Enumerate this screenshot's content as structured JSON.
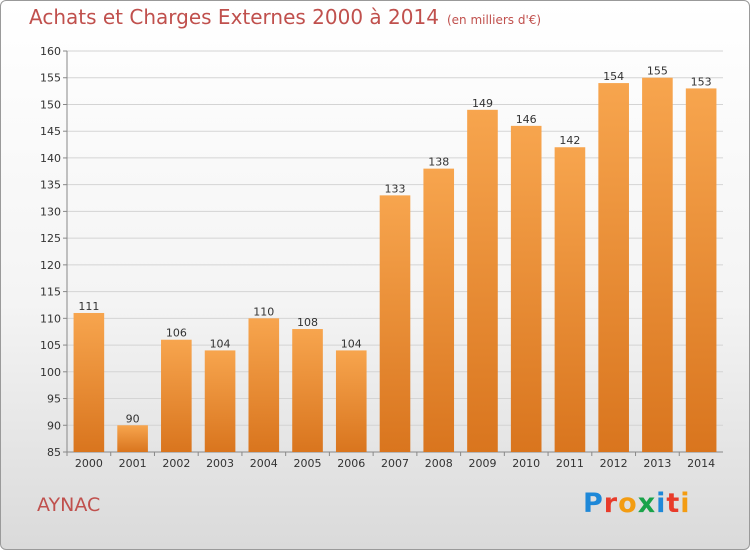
{
  "title": "Achats et Charges Externes 2000 à 2014",
  "unit": "(en milliers d'€)",
  "commune": "AYNAC",
  "logo": {
    "letters": [
      "P",
      "r",
      "o",
      "x",
      "i",
      "t",
      "i"
    ],
    "colors": [
      "#1e88d8",
      "#e83b2a",
      "#f39c12",
      "#1aa34a",
      "#1e88d8",
      "#e83b2a",
      "#f39c12"
    ]
  },
  "colors": {
    "bar_top": "#f7a54e",
    "bar_bottom": "#d9751e",
    "title": "#c0504d"
  },
  "chart_data": {
    "type": "bar",
    "categories": [
      "2000",
      "2001",
      "2002",
      "2003",
      "2004",
      "2005",
      "2006",
      "2007",
      "2008",
      "2009",
      "2010",
      "2011",
      "2012",
      "2013",
      "2014"
    ],
    "values": [
      111,
      90,
      106,
      104,
      110,
      108,
      104,
      133,
      138,
      149,
      146,
      142,
      154,
      155,
      153
    ],
    "ylim": [
      85,
      160
    ],
    "yticks": [
      85,
      90,
      95,
      100,
      105,
      110,
      115,
      120,
      125,
      130,
      135,
      140,
      145,
      150,
      155,
      160
    ],
    "grid": true,
    "title": "Achats et Charges Externes 2000 à 2014",
    "xlabel": "",
    "ylabel": ""
  }
}
